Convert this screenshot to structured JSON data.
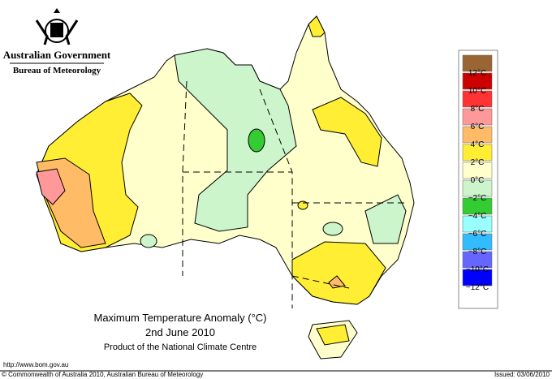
{
  "header": {
    "agency": "Australian Government",
    "bureau": "Bureau of Meteorology"
  },
  "map": {
    "title": "Maximum Temperature Anomaly (°C)",
    "date": "2nd June 2010",
    "product": "Product of the National Climate Centre"
  },
  "legend": [
    {
      "color": "#996633",
      "label": null
    },
    {
      "color": "#cc0000",
      "label": "12°C"
    },
    {
      "color": "#ff3333",
      "label": "10°C"
    },
    {
      "color": "#ff9999",
      "label": "8°C"
    },
    {
      "color": "#ffbb66",
      "label": "6°C"
    },
    {
      "color": "#ffee33",
      "label": "4°C"
    },
    {
      "color": "#ffffcc",
      "label": "2°C"
    },
    {
      "color": "#ccf5cc",
      "label": "0°C"
    },
    {
      "color": "#33cc33",
      "label": "−2°C"
    },
    {
      "color": "#99ffff",
      "label": "−4°C"
    },
    {
      "color": "#33bbff",
      "label": "−6°C"
    },
    {
      "color": "#6666ff",
      "label": "−8°C"
    },
    {
      "color": "#0000ff",
      "label": "−10°C"
    },
    {
      "color": null,
      "label": "−12°C"
    }
  ],
  "footer": {
    "url": "http://www.bom.gov.au",
    "copyright": "© Commonwealth of Australia 2010, Australian Bureau of Meteorology",
    "issued": "Issued: 03/06/2010"
  }
}
